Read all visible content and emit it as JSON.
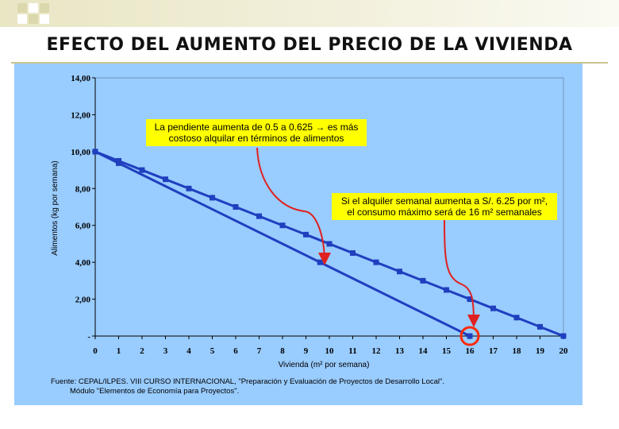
{
  "title": "EFECTO DEL AUMENTO DEL PRECIO DE LA VIVIENDA",
  "chart_data": {
    "type": "line",
    "xlabel": "Vivienda (m² por semana)",
    "ylabel": "Alimentos (kg por semana)",
    "x_ticks": [
      "0",
      "1",
      "2",
      "3",
      "4",
      "5",
      "6",
      "7",
      "8",
      "9",
      "10",
      "11",
      "12",
      "13",
      "14",
      "15",
      "16",
      "17",
      "18",
      "19",
      "20"
    ],
    "y_ticks": [
      "-",
      "2,00",
      "4,00",
      "6,00",
      "8,00",
      "10,00",
      "12,00",
      "14,00"
    ],
    "xlim": [
      0,
      20
    ],
    "ylim": [
      0,
      14
    ],
    "grid": false,
    "series": [
      {
        "x": [
          0,
          1,
          2,
          3,
          4,
          5,
          6,
          7,
          8,
          9,
          10,
          11,
          12,
          13,
          14,
          15,
          16,
          17,
          18,
          19,
          20
        ],
        "values": [
          10,
          9.5,
          9,
          8.5,
          8,
          7.5,
          7,
          6.5,
          6,
          5.5,
          5,
          4.5,
          4,
          3.5,
          3,
          2.5,
          2,
          1.5,
          1,
          0.5,
          0
        ],
        "color": "#1f3fbf"
      },
      {
        "x": [
          0,
          1,
          9.6,
          16
        ],
        "values": [
          10,
          9.375,
          4,
          0
        ],
        "color": "#1f3fbf"
      }
    ],
    "annotations": [
      {
        "text": "La pendiente aumenta de 0.5 a 0.625 → es más costoso alquilar en términos de alimentos",
        "lines": [
          "La pendiente aumenta de 0.5 a 0.625 → es más",
          "costoso alquilar en términos de alimentos"
        ]
      },
      {
        "text": "Si el alquiler semanal aumenta a S/. 6.25 por m², el consumo máximo será de 16 m² semanales",
        "lines": [
          "Si el alquiler semanal aumenta a S/. 6.25 por m²,",
          "el consumo máximo será de 16 m² semanales"
        ]
      }
    ],
    "colors": {
      "panel": "#99ccff",
      "line": "#1f3fbf",
      "arrow": "#e02020",
      "note_bg": "#ffff00"
    }
  },
  "source": {
    "line1": "Fuente: CEPAL/ILPES. VIII CURSO INTERNACIONAL, \"Preparación y Evaluación de Proyectos de Desarrollo Local\".",
    "line2": "Módulo \"Elementos de Economía para Proyectos\"."
  }
}
